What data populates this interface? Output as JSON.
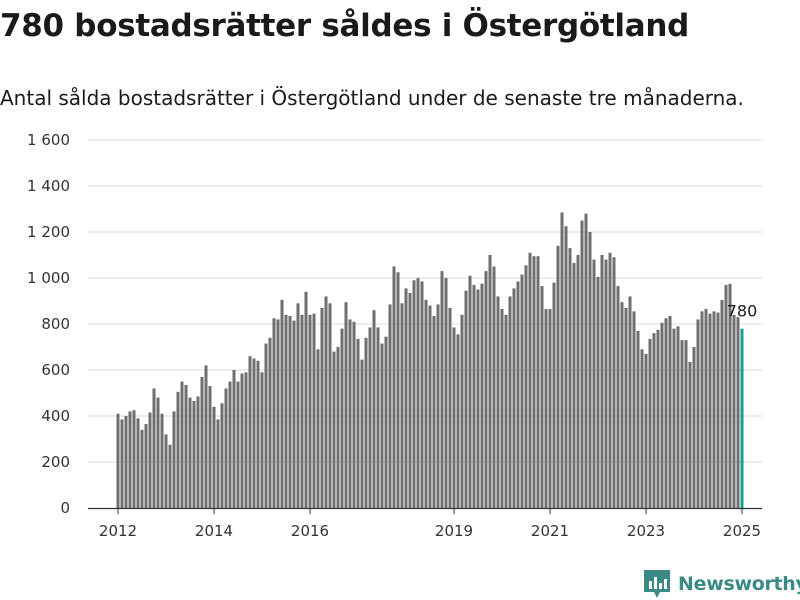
{
  "header": {
    "title": "780 bostadsrätter såldes i Östergötland",
    "subtitle": "Antal sålda bostadsrätter i Östergötland under de senaste tre månaderna."
  },
  "brand": {
    "name": "Newsworthy",
    "color": "#3b8a86",
    "icon": "newsworthy-logo-icon"
  },
  "colors": {
    "bar": "#6e6e73",
    "highlight": "#1a9e8e",
    "grid": "#d9d9d9",
    "axis": "#333333"
  },
  "chart_data": {
    "type": "bar",
    "title": "780 bostadsrätter såldes i Östergötland",
    "subtitle": "Antal sålda bostadsrätter i Östergötland under de senaste tre månaderna.",
    "xlabel": "",
    "ylabel": "",
    "ylim": [
      0,
      1600
    ],
    "yticks": [
      0,
      200,
      400,
      600,
      800,
      1000,
      1200,
      1400,
      1600
    ],
    "ytick_labels": [
      "0",
      "200",
      "400",
      "600",
      "800",
      "1 000",
      "1 200",
      "1 400",
      "1 600"
    ],
    "xticks": [
      {
        "label": "2012",
        "month_index": 0
      },
      {
        "label": "2014",
        "month_index": 24
      },
      {
        "label": "2016",
        "month_index": 48
      },
      {
        "label": "2019",
        "month_index": 84
      },
      {
        "label": "2021",
        "month_index": 108
      },
      {
        "label": "2023",
        "month_index": 132
      },
      {
        "label": "2025",
        "month_index": 156
      }
    ],
    "period": {
      "start": "2012-01",
      "end": "2025-01",
      "frequency": "monthly"
    },
    "grid": true,
    "legend": "none",
    "highlight_last": true,
    "data_label": {
      "text": "780",
      "month_index": 156
    },
    "values": [
      410,
      385,
      400,
      420,
      425,
      390,
      340,
      365,
      415,
      520,
      480,
      410,
      320,
      275,
      420,
      505,
      550,
      535,
      480,
      465,
      485,
      570,
      620,
      530,
      440,
      385,
      455,
      520,
      550,
      600,
      550,
      585,
      590,
      660,
      650,
      640,
      590,
      715,
      740,
      825,
      820,
      905,
      840,
      835,
      815,
      890,
      840,
      940,
      840,
      845,
      690,
      870,
      920,
      890,
      680,
      700,
      780,
      895,
      820,
      810,
      735,
      645,
      740,
      785,
      860,
      785,
      715,
      745,
      885,
      1050,
      1025,
      890,
      955,
      935,
      990,
      1000,
      985,
      905,
      880,
      835,
      885,
      1030,
      1000,
      870,
      785,
      755,
      840,
      945,
      1010,
      970,
      950,
      975,
      1030,
      1100,
      1050,
      920,
      865,
      840,
      920,
      955,
      985,
      1015,
      1055,
      1110,
      1095,
      1095,
      965,
      865,
      865,
      980,
      1140,
      1285,
      1225,
      1130,
      1065,
      1100,
      1250,
      1280,
      1200,
      1080,
      1005,
      1100,
      1080,
      1110,
      1090,
      965,
      895,
      870,
      920,
      855,
      770,
      690,
      670,
      735,
      760,
      775,
      805,
      825,
      835,
      780,
      790,
      730,
      730,
      635,
      700,
      820,
      855,
      865,
      845,
      855,
      850,
      905,
      970,
      975,
      840,
      830,
      780
    ]
  }
}
